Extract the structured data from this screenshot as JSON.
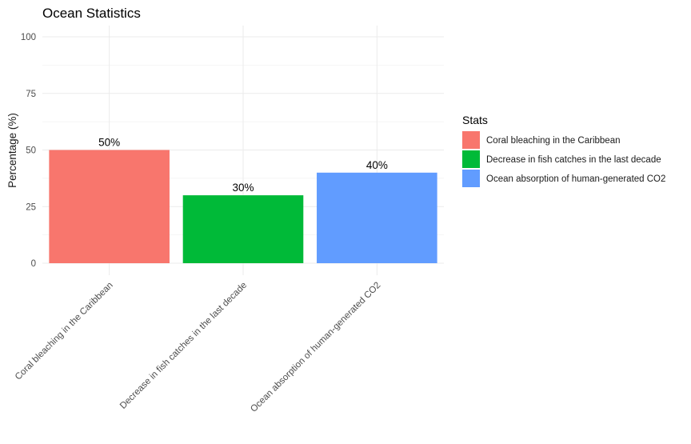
{
  "chart_data": {
    "type": "bar",
    "title": "Ocean Statistics",
    "xlabel": "",
    "ylabel": "Percentage (%)",
    "ylim": [
      0,
      100
    ],
    "yticks": [
      0,
      25,
      50,
      75,
      100
    ],
    "grid": true,
    "categories": [
      "Coral bleaching in the Caribbean",
      "Decrease in fish catches in the last decade",
      "Ocean absorption of human-generated CO2"
    ],
    "values": [
      50,
      30,
      40
    ],
    "data_labels": [
      "50%",
      "30%",
      "40%"
    ],
    "colors": [
      "#F8766D",
      "#00BA38",
      "#619CFF"
    ],
    "legend": {
      "title": "Stats",
      "placement": "right",
      "entries": [
        "Coral bleaching in the Caribbean",
        "Decrease in fish catches in the last decade",
        "Ocean absorption of human-generated CO2"
      ]
    }
  }
}
